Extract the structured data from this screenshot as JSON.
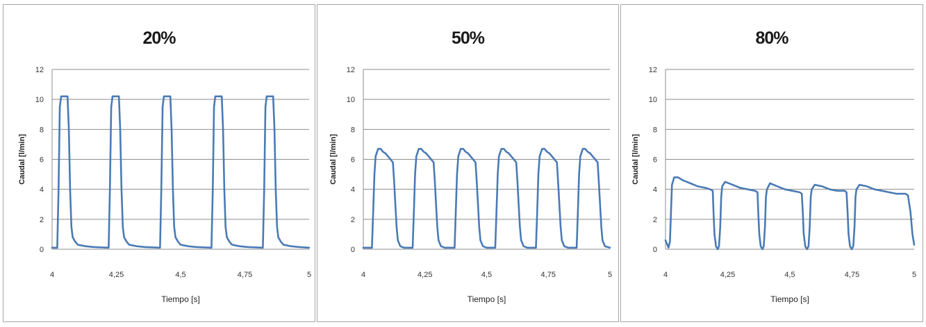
{
  "chart_data": [
    {
      "type": "line",
      "title": "20%",
      "xlabel": "Tiempo [s]",
      "ylabel": "Caudal [l/min]",
      "xlim": [
        4,
        5
      ],
      "ylim": [
        0,
        12
      ],
      "x_ticks": [
        "4",
        "4,25",
        "4,5",
        "4,75",
        "5"
      ],
      "y_ticks": [
        "0",
        "2",
        "4",
        "6",
        "8",
        "10",
        "12"
      ],
      "grid": "horizontal",
      "series": [
        {
          "color": "#4a7ab5",
          "points": [
            [
              4.0,
              0.1
            ],
            [
              4.02,
              0.1
            ],
            [
              4.025,
              4.0
            ],
            [
              4.03,
              9.5
            ],
            [
              4.035,
              10.2
            ],
            [
              4.06,
              10.2
            ],
            [
              4.065,
              8.0
            ],
            [
              4.07,
              4.0
            ],
            [
              4.075,
              1.5
            ],
            [
              4.08,
              0.8
            ],
            [
              4.09,
              0.5
            ],
            [
              4.1,
              0.3
            ],
            [
              4.13,
              0.2
            ],
            [
              4.16,
              0.15
            ],
            [
              4.22,
              0.1
            ],
            [
              4.225,
              4.0
            ],
            [
              4.23,
              9.5
            ],
            [
              4.235,
              10.2
            ],
            [
              4.26,
              10.2
            ],
            [
              4.265,
              8.0
            ],
            [
              4.27,
              4.0
            ],
            [
              4.275,
              1.5
            ],
            [
              4.28,
              0.8
            ],
            [
              4.29,
              0.5
            ],
            [
              4.3,
              0.3
            ],
            [
              4.33,
              0.2
            ],
            [
              4.36,
              0.15
            ],
            [
              4.42,
              0.1
            ],
            [
              4.425,
              4.0
            ],
            [
              4.43,
              9.5
            ],
            [
              4.435,
              10.2
            ],
            [
              4.46,
              10.2
            ],
            [
              4.465,
              8.0
            ],
            [
              4.47,
              4.0
            ],
            [
              4.475,
              1.5
            ],
            [
              4.48,
              0.8
            ],
            [
              4.49,
              0.5
            ],
            [
              4.5,
              0.3
            ],
            [
              4.53,
              0.2
            ],
            [
              4.56,
              0.15
            ],
            [
              4.62,
              0.1
            ],
            [
              4.625,
              4.0
            ],
            [
              4.63,
              9.5
            ],
            [
              4.635,
              10.2
            ],
            [
              4.66,
              10.2
            ],
            [
              4.665,
              8.0
            ],
            [
              4.67,
              4.0
            ],
            [
              4.675,
              1.5
            ],
            [
              4.68,
              0.8
            ],
            [
              4.69,
              0.5
            ],
            [
              4.7,
              0.3
            ],
            [
              4.73,
              0.2
            ],
            [
              4.76,
              0.15
            ],
            [
              4.82,
              0.1
            ],
            [
              4.825,
              4.0
            ],
            [
              4.83,
              9.5
            ],
            [
              4.835,
              10.2
            ],
            [
              4.86,
              10.2
            ],
            [
              4.865,
              8.0
            ],
            [
              4.87,
              4.0
            ],
            [
              4.875,
              1.5
            ],
            [
              4.88,
              0.8
            ],
            [
              4.89,
              0.5
            ],
            [
              4.9,
              0.3
            ],
            [
              4.93,
              0.2
            ],
            [
              4.96,
              0.15
            ],
            [
              5.0,
              0.1
            ]
          ]
        }
      ]
    },
    {
      "type": "line",
      "title": "50%",
      "xlabel": "Tiempo [s]",
      "ylabel": "Caudal [l/min]",
      "xlim": [
        4,
        5
      ],
      "ylim": [
        0,
        12
      ],
      "x_ticks": [
        "4",
        "4,25",
        "4,5",
        "4,75",
        "5"
      ],
      "y_ticks": [
        "0",
        "2",
        "4",
        "6",
        "8",
        "10",
        "12"
      ],
      "grid": "horizontal",
      "series": [
        {
          "color": "#4a7ab5",
          "points": [
            [
              4.0,
              0.1
            ],
            [
              4.035,
              0.1
            ],
            [
              4.04,
              2.5
            ],
            [
              4.045,
              5.0
            ],
            [
              4.05,
              6.2
            ],
            [
              4.06,
              6.7
            ],
            [
              4.07,
              6.7
            ],
            [
              4.08,
              6.5
            ],
            [
              4.09,
              6.4
            ],
            [
              4.1,
              6.2
            ],
            [
              4.11,
              6.0
            ],
            [
              4.12,
              5.8
            ],
            [
              4.125,
              4.5
            ],
            [
              4.13,
              3.0
            ],
            [
              4.135,
              1.5
            ],
            [
              4.14,
              0.6
            ],
            [
              4.15,
              0.2
            ],
            [
              4.165,
              0.1
            ],
            [
              4.2,
              0.1
            ],
            [
              4.205,
              2.5
            ],
            [
              4.21,
              5.0
            ],
            [
              4.215,
              6.2
            ],
            [
              4.225,
              6.7
            ],
            [
              4.235,
              6.7
            ],
            [
              4.245,
              6.5
            ],
            [
              4.255,
              6.4
            ],
            [
              4.265,
              6.2
            ],
            [
              4.275,
              6.0
            ],
            [
              4.285,
              5.8
            ],
            [
              4.29,
              4.5
            ],
            [
              4.295,
              3.0
            ],
            [
              4.3,
              1.5
            ],
            [
              4.305,
              0.6
            ],
            [
              4.315,
              0.2
            ],
            [
              4.33,
              0.1
            ],
            [
              4.37,
              0.1
            ],
            [
              4.375,
              2.5
            ],
            [
              4.38,
              5.0
            ],
            [
              4.385,
              6.2
            ],
            [
              4.395,
              6.7
            ],
            [
              4.405,
              6.7
            ],
            [
              4.415,
              6.5
            ],
            [
              4.425,
              6.4
            ],
            [
              4.435,
              6.2
            ],
            [
              4.445,
              6.0
            ],
            [
              4.455,
              5.8
            ],
            [
              4.46,
              4.5
            ],
            [
              4.465,
              3.0
            ],
            [
              4.47,
              1.5
            ],
            [
              4.475,
              0.6
            ],
            [
              4.485,
              0.2
            ],
            [
              4.5,
              0.1
            ],
            [
              4.535,
              0.1
            ],
            [
              4.54,
              2.5
            ],
            [
              4.545,
              5.0
            ],
            [
              4.55,
              6.2
            ],
            [
              4.56,
              6.7
            ],
            [
              4.57,
              6.7
            ],
            [
              4.58,
              6.5
            ],
            [
              4.59,
              6.4
            ],
            [
              4.6,
              6.2
            ],
            [
              4.61,
              6.0
            ],
            [
              4.62,
              5.8
            ],
            [
              4.625,
              4.5
            ],
            [
              4.63,
              3.0
            ],
            [
              4.635,
              1.5
            ],
            [
              4.64,
              0.6
            ],
            [
              4.65,
              0.2
            ],
            [
              4.665,
              0.1
            ],
            [
              4.7,
              0.1
            ],
            [
              4.705,
              2.5
            ],
            [
              4.71,
              5.0
            ],
            [
              4.715,
              6.2
            ],
            [
              4.725,
              6.7
            ],
            [
              4.735,
              6.7
            ],
            [
              4.745,
              6.5
            ],
            [
              4.755,
              6.4
            ],
            [
              4.765,
              6.2
            ],
            [
              4.775,
              6.0
            ],
            [
              4.785,
              5.8
            ],
            [
              4.79,
              4.5
            ],
            [
              4.795,
              3.0
            ],
            [
              4.8,
              1.5
            ],
            [
              4.805,
              0.6
            ],
            [
              4.815,
              0.2
            ],
            [
              4.83,
              0.1
            ],
            [
              4.865,
              0.1
            ],
            [
              4.87,
              2.5
            ],
            [
              4.875,
              5.0
            ],
            [
              4.88,
              6.2
            ],
            [
              4.89,
              6.7
            ],
            [
              4.9,
              6.7
            ],
            [
              4.91,
              6.5
            ],
            [
              4.92,
              6.4
            ],
            [
              4.93,
              6.2
            ],
            [
              4.94,
              6.0
            ],
            [
              4.95,
              5.8
            ],
            [
              4.955,
              4.5
            ],
            [
              4.96,
              3.0
            ],
            [
              4.965,
              1.5
            ],
            [
              4.97,
              0.6
            ],
            [
              4.98,
              0.2
            ],
            [
              5.0,
              0.1
            ]
          ]
        }
      ]
    },
    {
      "type": "line",
      "title": "80%",
      "xlabel": "Tiempo [s]",
      "ylabel": "Caudal [l/min]",
      "xlim": [
        4,
        5
      ],
      "ylim": [
        0,
        12
      ],
      "x_ticks": [
        "4",
        "4,25",
        "4,5",
        "4,75",
        "5"
      ],
      "y_ticks": [
        "0",
        "2",
        "4",
        "6",
        "8",
        "10",
        "12"
      ],
      "grid": "horizontal",
      "series": [
        {
          "color": "#4a7ab5",
          "points": [
            [
              4.0,
              0.6
            ],
            [
              4.005,
              0.4
            ],
            [
              4.012,
              0.1
            ],
            [
              4.018,
              0.5
            ],
            [
              4.022,
              2.5
            ],
            [
              4.026,
              4.3
            ],
            [
              4.035,
              4.8
            ],
            [
              4.05,
              4.8
            ],
            [
              4.07,
              4.6
            ],
            [
              4.1,
              4.4
            ],
            [
              4.13,
              4.2
            ],
            [
              4.16,
              4.1
            ],
            [
              4.18,
              4.0
            ],
            [
              4.19,
              3.9
            ],
            [
              4.193,
              2.5
            ],
            [
              4.197,
              1.0
            ],
            [
              4.203,
              0.2
            ],
            [
              4.21,
              0.0
            ],
            [
              4.215,
              0.2
            ],
            [
              4.22,
              1.5
            ],
            [
              4.224,
              3.5
            ],
            [
              4.228,
              4.2
            ],
            [
              4.24,
              4.5
            ],
            [
              4.27,
              4.3
            ],
            [
              4.3,
              4.1
            ],
            [
              4.33,
              4.0
            ],
            [
              4.36,
              3.9
            ],
            [
              4.37,
              3.8
            ],
            [
              4.373,
              2.5
            ],
            [
              4.377,
              1.0
            ],
            [
              4.383,
              0.2
            ],
            [
              4.39,
              0.0
            ],
            [
              4.395,
              0.2
            ],
            [
              4.4,
              1.5
            ],
            [
              4.404,
              3.5
            ],
            [
              4.408,
              4.0
            ],
            [
              4.42,
              4.4
            ],
            [
              4.45,
              4.2
            ],
            [
              4.48,
              4.0
            ],
            [
              4.51,
              3.9
            ],
            [
              4.54,
              3.8
            ],
            [
              4.548,
              3.7
            ],
            [
              4.552,
              2.5
            ],
            [
              4.556,
              1.0
            ],
            [
              4.562,
              0.2
            ],
            [
              4.569,
              0.0
            ],
            [
              4.575,
              0.2
            ],
            [
              4.58,
              1.5
            ],
            [
              4.584,
              3.5
            ],
            [
              4.588,
              4.0
            ],
            [
              4.6,
              4.3
            ],
            [
              4.63,
              4.2
            ],
            [
              4.66,
              4.0
            ],
            [
              4.69,
              3.9
            ],
            [
              4.72,
              3.9
            ],
            [
              4.728,
              3.8
            ],
            [
              4.732,
              2.5
            ],
            [
              4.736,
              1.0
            ],
            [
              4.742,
              0.2
            ],
            [
              4.749,
              0.0
            ],
            [
              4.755,
              0.2
            ],
            [
              4.76,
              1.5
            ],
            [
              4.764,
              3.5
            ],
            [
              4.768,
              4.0
            ],
            [
              4.78,
              4.3
            ],
            [
              4.81,
              4.2
            ],
            [
              4.84,
              4.0
            ],
            [
              4.87,
              3.9
            ],
            [
              4.9,
              3.8
            ],
            [
              4.93,
              3.7
            ],
            [
              4.965,
              3.7
            ],
            [
              4.975,
              3.6
            ],
            [
              4.985,
              2.5
            ],
            [
              4.993,
              1.0
            ],
            [
              5.0,
              0.3
            ]
          ]
        }
      ]
    }
  ]
}
